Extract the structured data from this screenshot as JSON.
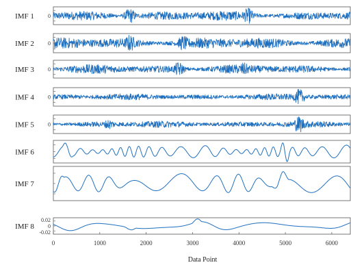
{
  "chart_data": {
    "type": "line",
    "xlabel": "Data Point",
    "xlim": [
      0,
      6400
    ],
    "xticks": [
      0,
      1000,
      2000,
      3000,
      4000,
      5000,
      6000
    ],
    "color": "#1f6fbf",
    "panels": [
      {
        "name": "IMF 1",
        "yticks": [
          "0"
        ],
        "kind": "noise",
        "amp": 0.55,
        "bursts": [
          {
            "x": 1650,
            "a": 0.85
          },
          {
            "x": 4200,
            "a": 0.9
          }
        ]
      },
      {
        "name": "IMF 2",
        "yticks": [
          "0"
        ],
        "kind": "noise",
        "amp": 0.6,
        "bursts": [
          {
            "x": 1650,
            "a": 0.9
          },
          {
            "x": 2800,
            "a": 0.8
          }
        ]
      },
      {
        "name": "IMF 3",
        "yticks": [
          "0"
        ],
        "kind": "noise",
        "amp": 0.5,
        "bursts": [
          {
            "x": 2700,
            "a": 0.8
          },
          {
            "x": 4100,
            "a": 0.75
          }
        ]
      },
      {
        "name": "IMF 4",
        "yticks": [
          "0"
        ],
        "kind": "noise",
        "amp": 0.28,
        "bursts": [
          {
            "x": 5300,
            "a": 0.85
          }
        ]
      },
      {
        "name": "IMF 5",
        "yticks": [
          "0"
        ],
        "kind": "noise",
        "amp": 0.3,
        "bursts": [
          {
            "x": 1200,
            "a": 0.5
          },
          {
            "x": 5300,
            "a": 0.95
          }
        ]
      },
      {
        "name": "IMF 6",
        "yticks": [],
        "kind": "wave",
        "amp": 0.55,
        "freq": 0.028,
        "bursts": [
          {
            "x": 300,
            "a": 0.9
          },
          {
            "x": 5000,
            "a": 0.95
          }
        ]
      },
      {
        "name": "IMF 7",
        "yticks": [],
        "kind": "wave",
        "amp": 0.6,
        "freq": 0.012,
        "bursts": [
          {
            "x": 100,
            "a": 0.95
          },
          {
            "x": 4900,
            "a": 0.95
          }
        ]
      },
      {
        "name": "IMF 8",
        "yticks": [
          "0.02",
          "0",
          "-0.02"
        ],
        "kind": "wave",
        "amp": 0.55,
        "freq": 0.0045,
        "bursts": [
          {
            "x": 1650,
            "a": 0.95
          },
          {
            "x": 3100,
            "a": 0.9
          }
        ]
      }
    ]
  }
}
